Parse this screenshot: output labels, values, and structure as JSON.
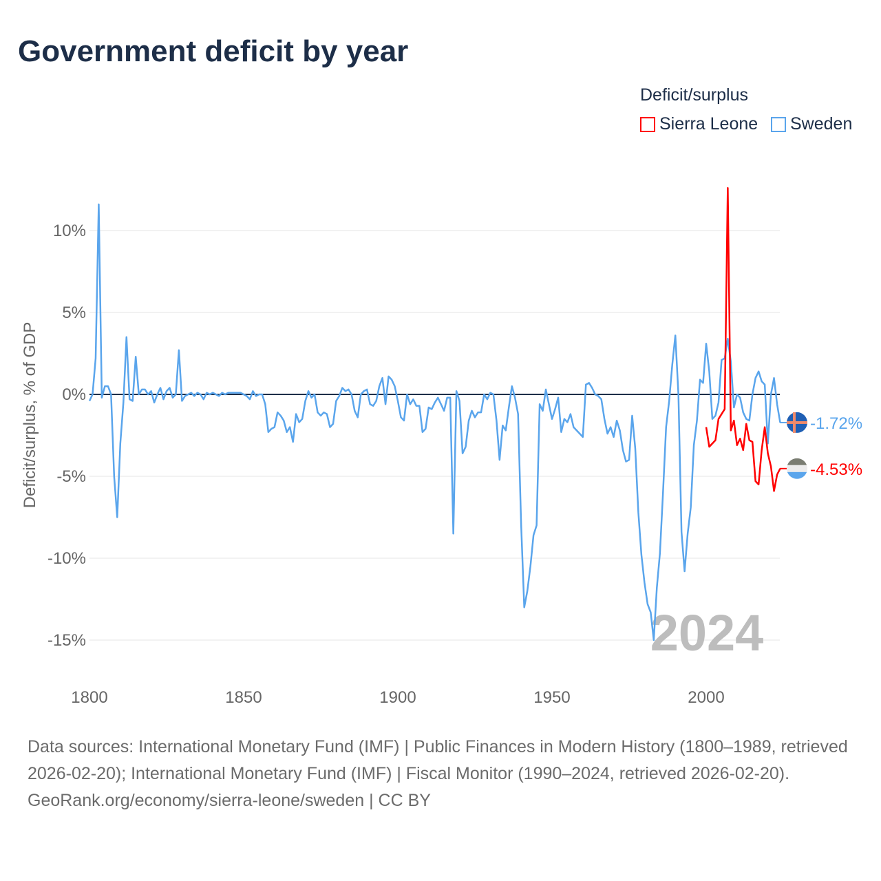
{
  "title": "Government deficit by year",
  "legend": {
    "title": "Deficit/surplus",
    "items": [
      {
        "label": "Sierra Leone",
        "color": "#ff0000"
      },
      {
        "label": "Sweden",
        "color": "#5aa5ec"
      }
    ]
  },
  "watermark_year": "2024",
  "end_labels": {
    "sweden": "-1.72%",
    "sierra_leone": "-4.53%"
  },
  "sources": {
    "text": "Data sources: International Monetary Fund (IMF) | Public Finances in Modern History (1800–1989, retrieved 2026-02-20); International Monetary Fund (IMF) | Fiscal Monitor (1990–2024, retrieved 2026-02-20).",
    "credit": "GeoRank.org/economy/sierra-leone/sweden | CC BY"
  },
  "chart_data": {
    "type": "line",
    "title": "Government deficit by year",
    "xlabel": "",
    "ylabel": "Deficit/surplus, % of GDP",
    "xlim": [
      1800,
      2024
    ],
    "ylim": [
      -15,
      12.6
    ],
    "xticks": [
      1800,
      1850,
      1900,
      1950,
      2000
    ],
    "xtick_labels": [
      "1800",
      "1850",
      "1900",
      "1950",
      "2000"
    ],
    "yticks": [
      10,
      5,
      0,
      -5,
      -10,
      -15
    ],
    "ytick_labels": [
      "10%",
      "5%",
      "0%",
      "-5%",
      "-10%",
      "-15%"
    ],
    "grid": true,
    "legend_position": "top-right",
    "series": [
      {
        "name": "Sweden",
        "color": "#5aa5ec",
        "points": [
          [
            1800,
            -0.4
          ],
          [
            1801,
            0
          ],
          [
            1802,
            2.2
          ],
          [
            1803,
            11.6
          ],
          [
            1804,
            -0.2
          ],
          [
            1805,
            0.5
          ],
          [
            1806,
            0.5
          ],
          [
            1807,
            0
          ],
          [
            1808,
            -5
          ],
          [
            1809,
            -7.5
          ],
          [
            1810,
            -3
          ],
          [
            1811,
            -0.5
          ],
          [
            1812,
            3.5
          ],
          [
            1813,
            -0.3
          ],
          [
            1814,
            -0.4
          ],
          [
            1815,
            2.3
          ],
          [
            1816,
            0
          ],
          [
            1817,
            0.3
          ],
          [
            1818,
            0.3
          ],
          [
            1819,
            0
          ],
          [
            1820,
            0.2
          ],
          [
            1821,
            -0.5
          ],
          [
            1822,
            0
          ],
          [
            1823,
            0.4
          ],
          [
            1824,
            -0.3
          ],
          [
            1825,
            0.2
          ],
          [
            1826,
            0.4
          ],
          [
            1827,
            -0.2
          ],
          [
            1828,
            0
          ],
          [
            1829,
            2.7
          ],
          [
            1830,
            -0.4
          ],
          [
            1831,
            -0.1
          ],
          [
            1832,
            0
          ],
          [
            1833,
            0.1
          ],
          [
            1834,
            -0.1
          ],
          [
            1835,
            0.1
          ],
          [
            1836,
            0
          ],
          [
            1837,
            -0.3
          ],
          [
            1838,
            0.1
          ],
          [
            1839,
            0
          ],
          [
            1840,
            0.1
          ],
          [
            1841,
            0
          ],
          [
            1842,
            -0.1
          ],
          [
            1843,
            0.1
          ],
          [
            1844,
            0
          ],
          [
            1845,
            0.1
          ],
          [
            1846,
            0.1
          ],
          [
            1847,
            0.1
          ],
          [
            1848,
            0.1
          ],
          [
            1849,
            0.1
          ],
          [
            1850,
            0
          ],
          [
            1851,
            -0.1
          ],
          [
            1852,
            -0.3
          ],
          [
            1853,
            0.2
          ],
          [
            1854,
            -0.1
          ],
          [
            1855,
            0
          ],
          [
            1856,
            0
          ],
          [
            1857,
            -0.6
          ],
          [
            1858,
            -2.3
          ],
          [
            1859,
            -2.1
          ],
          [
            1860,
            -2.0
          ],
          [
            1861,
            -1.1
          ],
          [
            1862,
            -1.3
          ],
          [
            1863,
            -1.6
          ],
          [
            1864,
            -2.3
          ],
          [
            1865,
            -2.0
          ],
          [
            1866,
            -2.9
          ],
          [
            1867,
            -1.2
          ],
          [
            1868,
            -1.7
          ],
          [
            1869,
            -1.5
          ],
          [
            1870,
            -0.4
          ],
          [
            1871,
            0.2
          ],
          [
            1872,
            -0.2
          ],
          [
            1873,
            0
          ],
          [
            1874,
            -1.1
          ],
          [
            1875,
            -1.3
          ],
          [
            1876,
            -1.1
          ],
          [
            1877,
            -1.2
          ],
          [
            1878,
            -2.0
          ],
          [
            1879,
            -1.8
          ],
          [
            1880,
            -0.4
          ],
          [
            1881,
            -0.1
          ],
          [
            1882,
            0.4
          ],
          [
            1883,
            0.2
          ],
          [
            1884,
            0.3
          ],
          [
            1885,
            0
          ],
          [
            1886,
            -1.0
          ],
          [
            1887,
            -1.4
          ],
          [
            1888,
            0
          ],
          [
            1889,
            0.2
          ],
          [
            1890,
            0.3
          ],
          [
            1891,
            -0.6
          ],
          [
            1892,
            -0.7
          ],
          [
            1893,
            -0.4
          ],
          [
            1894,
            0.5
          ],
          [
            1895,
            1.0
          ],
          [
            1896,
            -0.6
          ],
          [
            1897,
            1.1
          ],
          [
            1898,
            0.9
          ],
          [
            1899,
            0.5
          ],
          [
            1900,
            -0.4
          ],
          [
            1901,
            -1.4
          ],
          [
            1902,
            -1.6
          ],
          [
            1903,
            0
          ],
          [
            1904,
            -0.6
          ],
          [
            1905,
            -0.3
          ],
          [
            1906,
            -0.7
          ],
          [
            1907,
            -0.7
          ],
          [
            1908,
            -2.3
          ],
          [
            1909,
            -2.1
          ],
          [
            1910,
            -0.8
          ],
          [
            1911,
            -0.9
          ],
          [
            1912,
            -0.5
          ],
          [
            1913,
            -0.2
          ],
          [
            1914,
            -0.6
          ],
          [
            1915,
            -1.0
          ],
          [
            1916,
            -0.2
          ],
          [
            1917,
            -0.2
          ],
          [
            1918,
            -8.5
          ],
          [
            1919,
            0.2
          ],
          [
            1920,
            -0.4
          ],
          [
            1921,
            -3.6
          ],
          [
            1922,
            -3.2
          ],
          [
            1923,
            -1.6
          ],
          [
            1924,
            -1.0
          ],
          [
            1925,
            -1.4
          ],
          [
            1926,
            -1.1
          ],
          [
            1927,
            -1.1
          ],
          [
            1928,
            0
          ],
          [
            1929,
            -0.3
          ],
          [
            1930,
            0.1
          ],
          [
            1931,
            0
          ],
          [
            1932,
            -1.6
          ],
          [
            1933,
            -4.0
          ],
          [
            1934,
            -1.9
          ],
          [
            1935,
            -2.2
          ],
          [
            1936,
            -0.8
          ],
          [
            1937,
            0.5
          ],
          [
            1938,
            -0.2
          ],
          [
            1939,
            -1.2
          ],
          [
            1940,
            -8.0
          ],
          [
            1941,
            -13.0
          ],
          [
            1942,
            -12.0
          ],
          [
            1943,
            -10.5
          ],
          [
            1944,
            -8.6
          ],
          [
            1945,
            -8.0
          ],
          [
            1946,
            -0.6
          ],
          [
            1947,
            -1.0
          ],
          [
            1948,
            0.3
          ],
          [
            1949,
            -0.6
          ],
          [
            1950,
            -1.5
          ],
          [
            1951,
            -0.9
          ],
          [
            1952,
            -0.2
          ],
          [
            1953,
            -2.3
          ],
          [
            1954,
            -1.5
          ],
          [
            1955,
            -1.7
          ],
          [
            1956,
            -1.2
          ],
          [
            1957,
            -2.0
          ],
          [
            1958,
            -2.2
          ],
          [
            1959,
            -2.4
          ],
          [
            1960,
            -2.6
          ],
          [
            1961,
            0.6
          ],
          [
            1962,
            0.7
          ],
          [
            1963,
            0.4
          ],
          [
            1964,
            0
          ],
          [
            1965,
            -0.1
          ],
          [
            1966,
            -0.3
          ],
          [
            1967,
            -1.5
          ],
          [
            1968,
            -2.4
          ],
          [
            1969,
            -2.0
          ],
          [
            1970,
            -2.6
          ],
          [
            1971,
            -1.6
          ],
          [
            1972,
            -2.2
          ],
          [
            1973,
            -3.4
          ],
          [
            1974,
            -4.1
          ],
          [
            1975,
            -4.0
          ],
          [
            1976,
            -1.3
          ],
          [
            1977,
            -3.3
          ],
          [
            1978,
            -7.2
          ],
          [
            1979,
            -9.8
          ],
          [
            1980,
            -11.5
          ],
          [
            1981,
            -12.8
          ],
          [
            1982,
            -13.3
          ],
          [
            1983,
            -15.0
          ],
          [
            1984,
            -11.8
          ],
          [
            1985,
            -9.7
          ],
          [
            1986,
            -6.0
          ],
          [
            1987,
            -2.0
          ],
          [
            1988,
            -0.4
          ],
          [
            1989,
            1.8
          ],
          [
            1990,
            3.6
          ],
          [
            1991,
            0
          ],
          [
            1992,
            -8.4
          ],
          [
            1993,
            -10.8
          ],
          [
            1994,
            -8.5
          ],
          [
            1995,
            -6.9
          ],
          [
            1996,
            -3.1
          ],
          [
            1997,
            -1.6
          ],
          [
            1998,
            0.9
          ],
          [
            1999,
            0.7
          ],
          [
            2000,
            3.1
          ],
          [
            2001,
            1.4
          ],
          [
            2002,
            -1.5
          ],
          [
            2003,
            -1.3
          ],
          [
            2004,
            -0.5
          ],
          [
            2005,
            2.1
          ],
          [
            2006,
            2.2
          ],
          [
            2007,
            3.4
          ],
          [
            2008,
            2.0
          ],
          [
            2009,
            -0.8
          ],
          [
            2010,
            0
          ],
          [
            2011,
            -0.2
          ],
          [
            2012,
            -1.1
          ],
          [
            2013,
            -1.5
          ],
          [
            2014,
            -1.6
          ],
          [
            2015,
            0
          ],
          [
            2016,
            1.0
          ],
          [
            2017,
            1.4
          ],
          [
            2018,
            0.8
          ],
          [
            2019,
            0.6
          ],
          [
            2020,
            -3.0
          ],
          [
            2021,
            0
          ],
          [
            2022,
            1.0
          ],
          [
            2023,
            -0.6
          ],
          [
            2024,
            -1.72
          ]
        ]
      },
      {
        "name": "Sierra Leone",
        "color": "#ff0000",
        "points": [
          [
            2000,
            -2.0
          ],
          [
            2001,
            -3.2
          ],
          [
            2002,
            -3.0
          ],
          [
            2003,
            -2.8
          ],
          [
            2004,
            -1.5
          ],
          [
            2005,
            -1.2
          ],
          [
            2006,
            -0.9
          ],
          [
            2007,
            12.6
          ],
          [
            2008,
            -2.2
          ],
          [
            2009,
            -1.6
          ],
          [
            2010,
            -3.1
          ],
          [
            2011,
            -2.7
          ],
          [
            2012,
            -3.4
          ],
          [
            2013,
            -1.8
          ],
          [
            2014,
            -2.8
          ],
          [
            2015,
            -2.9
          ],
          [
            2016,
            -5.3
          ],
          [
            2017,
            -5.5
          ],
          [
            2018,
            -3.4
          ],
          [
            2019,
            -2.0
          ],
          [
            2020,
            -3.6
          ],
          [
            2021,
            -4.4
          ],
          [
            2022,
            -5.9
          ],
          [
            2023,
            -4.9
          ],
          [
            2024,
            -4.53
          ]
        ]
      }
    ]
  }
}
